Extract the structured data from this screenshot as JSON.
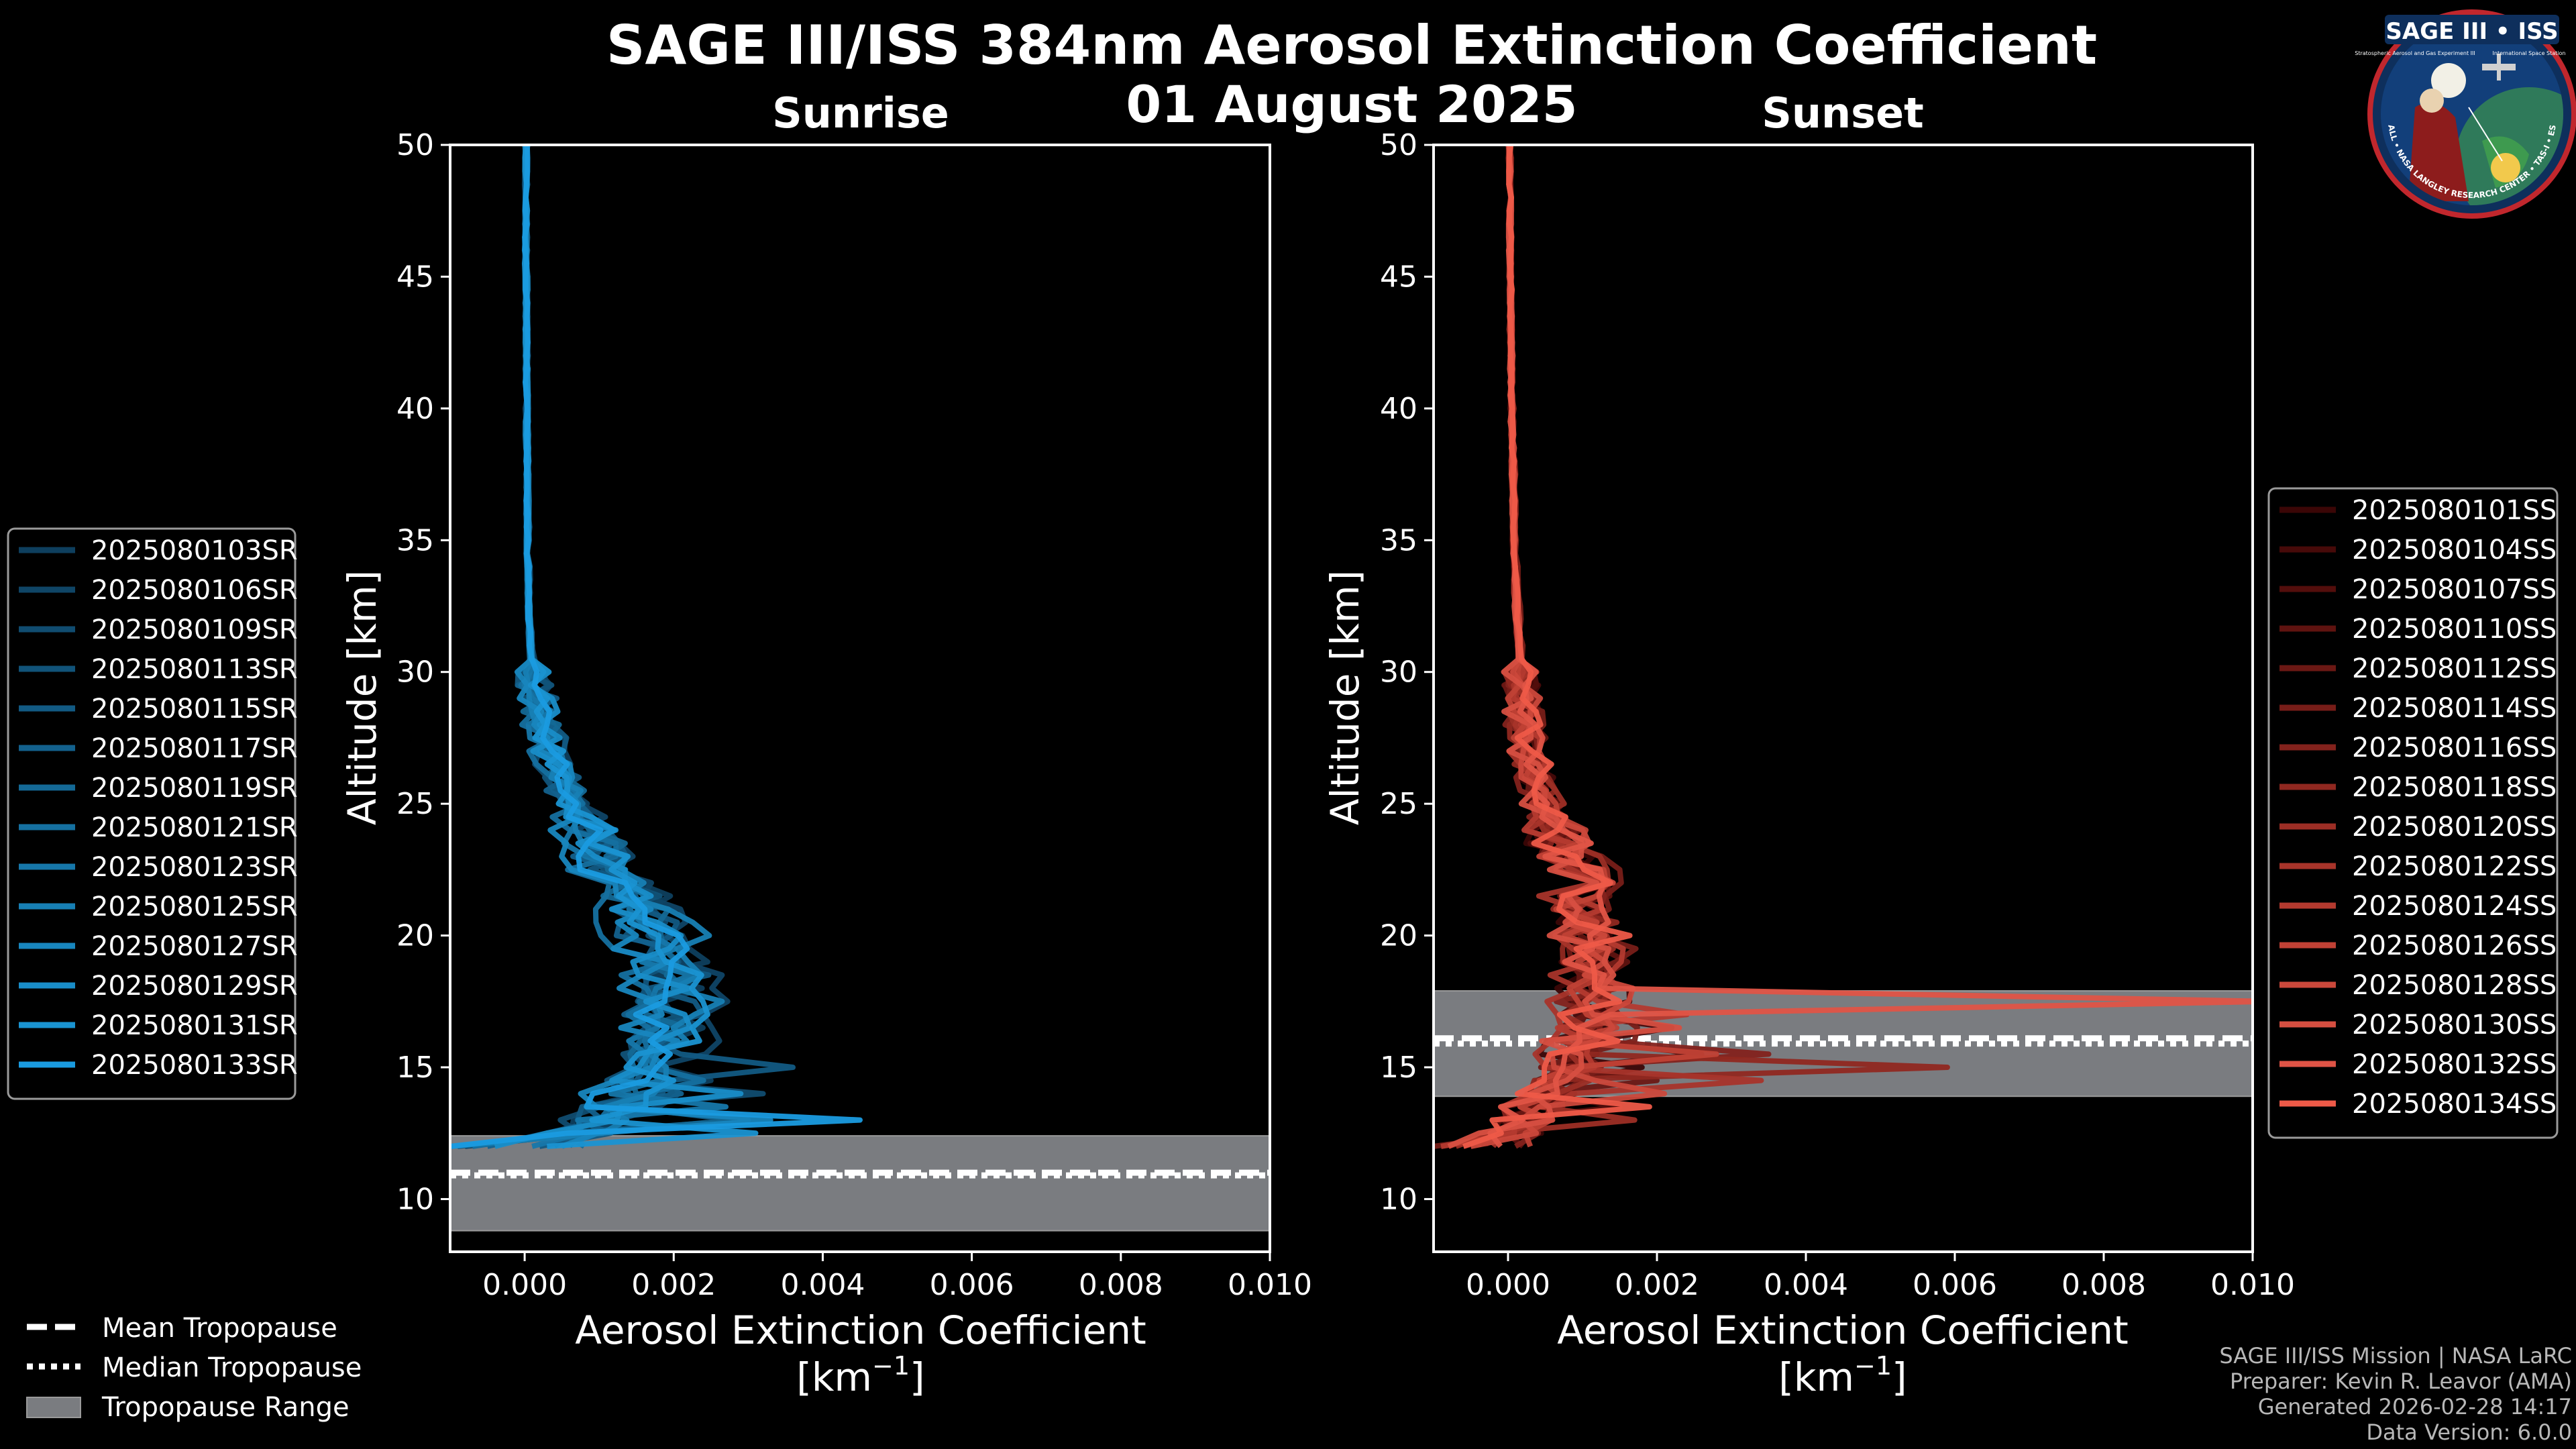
{
  "figure": {
    "title_line1": "SAGE III/ISS 384nm Aerosol Extinction Coefficient",
    "title_line2": "01 August 2025",
    "credits": [
      "SAGE III/ISS Mission | NASA LaRC",
      "Preparer: Kevin R. Leavor (AMA)",
      "Generated 2026-02-28 14:17",
      "Data Version: 6.0.0"
    ],
    "logo": {
      "title": "SAGE III • ISS",
      "subtitle_left": "Stratospheric Aerosol and Gas Experiment III",
      "subtitle_right": "International Space Station",
      "ring_text": "BALL • NASA LANGLEY RESEARCH CENTER • TAS-I • ESA"
    },
    "colors": {
      "background": "#000000",
      "sunrise": "#1a9be0",
      "sunset": "#ee5a48",
      "tropopause_band": "#7a7c80"
    }
  },
  "global_legend": {
    "items": [
      {
        "label": "Mean Tropopause",
        "style": "dashed"
      },
      {
        "label": "Median Tropopause",
        "style": "dotted"
      },
      {
        "label": "Tropopause Range",
        "style": "patch"
      }
    ]
  },
  "chart_data": [
    {
      "type": "line",
      "title": "Sunrise",
      "xlabel": "Aerosol Extinction Coefficient",
      "xunit_base": "[km",
      "xunit_exp": "−1",
      "xunit_close": "]",
      "ylabel": "Altitude [km]",
      "xlim": [
        -0.001,
        0.01
      ],
      "ylim": [
        8,
        50
      ],
      "xticks": [
        0,
        0.002,
        0.004,
        0.006,
        0.008,
        0.01
      ],
      "xtick_labels": [
        "0.000",
        "0.002",
        "0.004",
        "0.006",
        "0.008",
        "0.010"
      ],
      "yticks": [
        10,
        15,
        20,
        25,
        30,
        35,
        40,
        45,
        50
      ],
      "ytick_labels": [
        "10",
        "15",
        "20",
        "25",
        "30",
        "35",
        "40",
        "45",
        "50"
      ],
      "tropopause": {
        "mean": 11.0,
        "median": 10.9,
        "range": [
          8.8,
          12.4
        ]
      },
      "base_profile": [
        {
          "alt": 50,
          "ext": 2e-05
        },
        {
          "alt": 45,
          "ext": 2e-05
        },
        {
          "alt": 40,
          "ext": 3e-05
        },
        {
          "alt": 35,
          "ext": 4e-05
        },
        {
          "alt": 32,
          "ext": 6e-05
        },
        {
          "alt": 30,
          "ext": 0.0001
        },
        {
          "alt": 28,
          "ext": 0.00025
        },
        {
          "alt": 26,
          "ext": 0.00045
        },
        {
          "alt": 24,
          "ext": 0.0008
        },
        {
          "alt": 22,
          "ext": 0.0013
        },
        {
          "alt": 20,
          "ext": 0.0017
        },
        {
          "alt": 18,
          "ext": 0.0019
        },
        {
          "alt": 16,
          "ext": 0.0018
        },
        {
          "alt": 15,
          "ext": 0.0016
        },
        {
          "alt": 14,
          "ext": 0.0013
        },
        {
          "alt": 13,
          "ext": 0.0009
        },
        {
          "alt": 12.3,
          "ext": 0.0006
        }
      ],
      "series": [
        {
          "name": "2025080103SR",
          "color": "#0e3f5e",
          "bottom_ext": 0.0004,
          "spike_alt": 14.6,
          "spike_ext": 0.0025,
          "scale": 1.15
        },
        {
          "name": "2025080106SR",
          "color": "#0f4566",
          "bottom_ext": -0.0008,
          "spike_alt": 13.5,
          "spike_ext": 0.0018,
          "scale": 1.3
        },
        {
          "name": "2025080109SR",
          "color": "#104c70",
          "bottom_ext": 0.0006,
          "spike_alt": 14.2,
          "spike_ext": 0.0032,
          "scale": 0.9
        },
        {
          "name": "2025080113SR",
          "color": "#115379",
          "bottom_ext": -0.0009,
          "spike_alt": 13.2,
          "spike_ext": 0.0028,
          "scale": 1.0
        },
        {
          "name": "2025080115SR",
          "color": "#125a83",
          "bottom_ext": 0.0002,
          "spike_alt": 15.1,
          "spike_ext": 0.0036,
          "scale": 1.1
        },
        {
          "name": "2025080117SR",
          "color": "#13618d",
          "bottom_ext": -0.0005,
          "spike_alt": 13.8,
          "spike_ext": 0.0021,
          "scale": 0.95
        },
        {
          "name": "2025080119SR",
          "color": "#146996",
          "bottom_ext": 0.0008,
          "spike_alt": 12.9,
          "spike_ext": 0.003,
          "scale": 1.05
        },
        {
          "name": "2025080121SR",
          "color": "#1570a0",
          "bottom_ext": -0.0007,
          "spike_alt": 14.4,
          "spike_ext": 0.0024,
          "scale": 0.85
        },
        {
          "name": "2025080123SR",
          "color": "#1677aa",
          "bottom_ext": 0.0001,
          "spike_alt": 13.4,
          "spike_ext": 0.0027,
          "scale": 1.0
        },
        {
          "name": "2025080125SR",
          "color": "#177fb4",
          "bottom_ext": -0.001,
          "spike_alt": 14.9,
          "spike_ext": 0.0019,
          "scale": 1.2
        },
        {
          "name": "2025080127SR",
          "color": "#1886be",
          "bottom_ext": 0.0005,
          "spike_alt": 13.1,
          "spike_ext": 0.0033,
          "scale": 0.9
        },
        {
          "name": "2025080129SR",
          "color": "#198dc8",
          "bottom_ext": -0.0004,
          "spike_alt": 14.0,
          "spike_ext": 0.0029,
          "scale": 1.0
        },
        {
          "name": "2025080131SR",
          "color": "#1a94d2",
          "bottom_ext": 0.0003,
          "spike_alt": 12.7,
          "spike_ext": 0.0031,
          "scale": 1.1
        },
        {
          "name": "2025080133SR",
          "color": "#1a9be0",
          "bottom_ext": -0.001,
          "spike_alt": 13.0,
          "spike_ext": 0.0045,
          "scale": 1.0
        }
      ]
    },
    {
      "type": "line",
      "title": "Sunset",
      "xlabel": "Aerosol Extinction Coefficient",
      "xunit_base": "[km",
      "xunit_exp": "−1",
      "xunit_close": "]",
      "ylabel": "Altitude [km]",
      "xlim": [
        -0.001,
        0.01
      ],
      "ylim": [
        8,
        50
      ],
      "xticks": [
        0,
        0.002,
        0.004,
        0.006,
        0.008,
        0.01
      ],
      "xtick_labels": [
        "0.000",
        "0.002",
        "0.004",
        "0.006",
        "0.008",
        "0.010"
      ],
      "yticks": [
        10,
        15,
        20,
        25,
        30,
        35,
        40,
        45,
        50
      ],
      "ytick_labels": [
        "10",
        "15",
        "20",
        "25",
        "30",
        "35",
        "40",
        "45",
        "50"
      ],
      "tropopause": {
        "mean": 16.1,
        "median": 15.9,
        "range": [
          13.9,
          17.9
        ]
      },
      "base_profile": [
        {
          "alt": 50,
          "ext": 2e-05
        },
        {
          "alt": 45,
          "ext": 3e-05
        },
        {
          "alt": 40,
          "ext": 5e-05
        },
        {
          "alt": 35,
          "ext": 8e-05
        },
        {
          "alt": 32,
          "ext": 0.00012
        },
        {
          "alt": 30,
          "ext": 0.00016
        },
        {
          "alt": 28,
          "ext": 0.0002
        },
        {
          "alt": 26,
          "ext": 0.00035
        },
        {
          "alt": 24,
          "ext": 0.0006
        },
        {
          "alt": 22,
          "ext": 0.0009
        },
        {
          "alt": 20,
          "ext": 0.0011
        },
        {
          "alt": 18,
          "ext": 0.0011
        },
        {
          "alt": 16.5,
          "ext": 0.001
        },
        {
          "alt": 15,
          "ext": 0.0008
        },
        {
          "alt": 14,
          "ext": 0.0005
        },
        {
          "alt": 13,
          "ext": 0.0002
        },
        {
          "alt": 12.3,
          "ext": 0.0
        }
      ],
      "series": [
        {
          "name": "2025080101SS",
          "color": "#3b0606",
          "bottom_ext": -0.0009,
          "spike_alt": 14.8,
          "spike_ext": 0.0018,
          "scale": 1.0
        },
        {
          "name": "2025080104SS",
          "color": "#470a09",
          "bottom_ext": -0.0003,
          "spike_alt": 16.6,
          "spike_ext": 0.0022,
          "scale": 1.2
        },
        {
          "name": "2025080107SS",
          "color": "#530e0c",
          "bottom_ext": -0.0008,
          "spike_alt": 13.6,
          "spike_ext": 0.0015,
          "scale": 0.9
        },
        {
          "name": "2025080110SS",
          "color": "#5f1310",
          "bottom_ext": 0.0002,
          "spike_alt": 15.7,
          "spike_ext": 0.0026,
          "scale": 1.1
        },
        {
          "name": "2025080112SS",
          "color": "#6b1814",
          "bottom_ext": -0.0006,
          "spike_alt": 14.3,
          "spike_ext": 0.002,
          "scale": 1.0
        },
        {
          "name": "2025080114SS",
          "color": "#771d18",
          "bottom_ext": -0.001,
          "spike_alt": 16.2,
          "spike_ext": 0.0017,
          "scale": 1.3
        },
        {
          "name": "2025080116SS",
          "color": "#83221c",
          "bottom_ext": 0.0001,
          "spike_alt": 15.3,
          "spike_ext": 0.0035,
          "scale": 0.95
        },
        {
          "name": "2025080118SS",
          "color": "#902820",
          "bottom_ext": -0.0004,
          "spike_alt": 15.0,
          "spike_ext": 0.0059,
          "scale": 1.0
        },
        {
          "name": "2025080120SS",
          "color": "#9c2e25",
          "bottom_ext": -0.0007,
          "spike_alt": 13.0,
          "spike_ext": 0.0017,
          "scale": 1.1
        },
        {
          "name": "2025080122SS",
          "color": "#a8342a",
          "bottom_ext": -0.0002,
          "spike_alt": 14.5,
          "spike_ext": 0.0034,
          "scale": 0.9
        },
        {
          "name": "2025080124SS",
          "color": "#b43a2f",
          "bottom_ext": -0.0009,
          "spike_alt": 16.9,
          "spike_ext": 0.0024,
          "scale": 1.0
        },
        {
          "name": "2025080126SS",
          "color": "#c04135",
          "bottom_ext": 0.0003,
          "spike_alt": 15.5,
          "spike_ext": 0.0028,
          "scale": 1.05
        },
        {
          "name": "2025080128SS",
          "color": "#cb483b",
          "bottom_ext": -0.0005,
          "spike_alt": 14.0,
          "spike_ext": 0.0021,
          "scale": 1.15
        },
        {
          "name": "2025080130SS",
          "color": "#d64f41",
          "bottom_ext": -0.0008,
          "spike_alt": 16.4,
          "spike_ext": 0.0023,
          "scale": 0.9
        },
        {
          "name": "2025080132SS",
          "color": "#e05446",
          "bottom_ext": -0.0001,
          "spike_alt": 17.6,
          "spike_ext": 0.0102,
          "scale": 1.0
        },
        {
          "name": "2025080134SS",
          "color": "#ee5a48",
          "bottom_ext": -0.0006,
          "spike_alt": 13.5,
          "spike_ext": 0.0019,
          "scale": 1.1
        }
      ]
    }
  ]
}
